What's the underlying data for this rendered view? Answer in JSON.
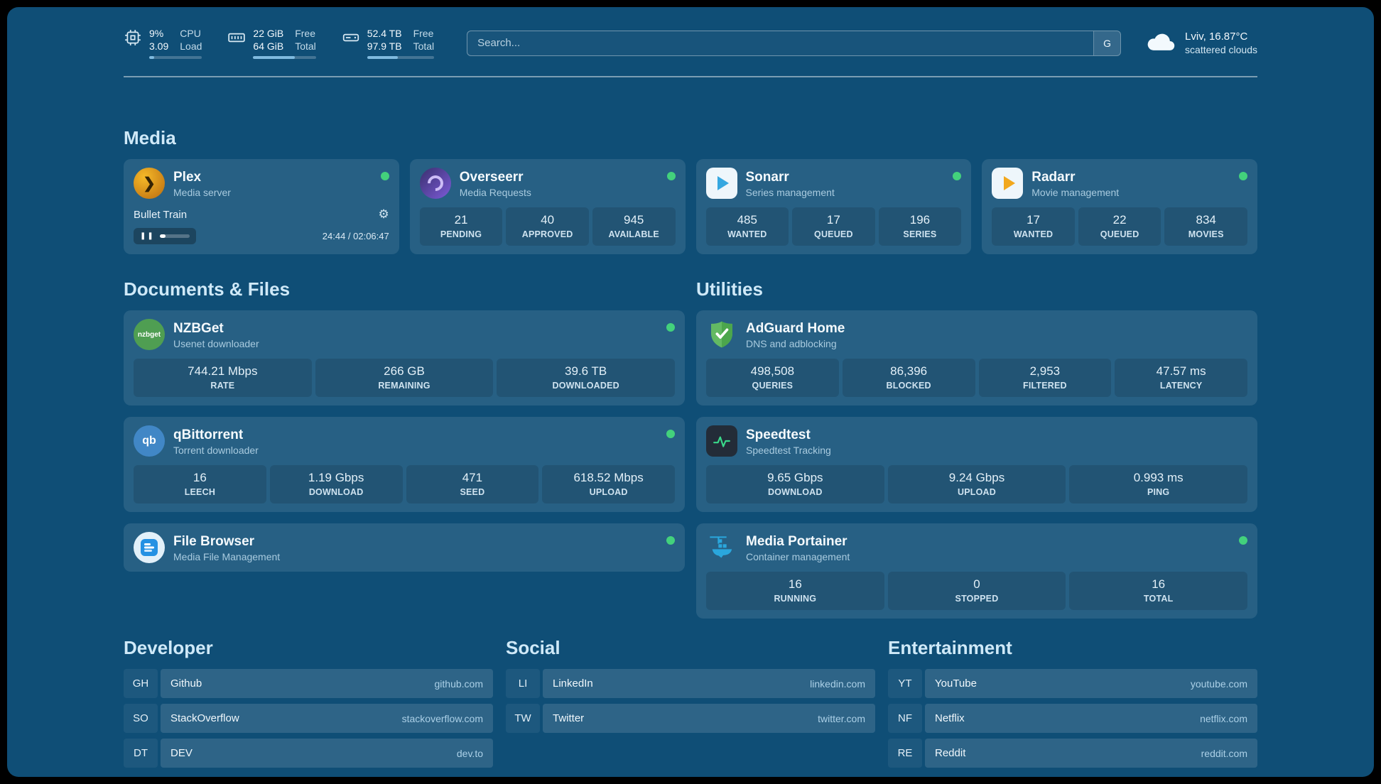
{
  "colors": {
    "status_online": "#43d17c",
    "accent_bar": "#7fbadf",
    "background": "#0f4e76"
  },
  "icons": {
    "gear": "⚙",
    "pause": "❚❚"
  },
  "topbar": {
    "cpu": {
      "value_top": "9%",
      "value_bottom": "3.09",
      "label_top": "CPU",
      "label_bottom": "Load",
      "usage_percent": 9
    },
    "memory": {
      "value_top": "22 GiB",
      "value_bottom": "64 GiB",
      "label_top": "Free",
      "label_bottom": "Total",
      "usage_percent": 66
    },
    "disk": {
      "value_top": "52.4 TB",
      "value_bottom": "97.9 TB",
      "label_top": "Free",
      "label_bottom": "Total",
      "usage_percent": 46
    },
    "search": {
      "placeholder": "Search...",
      "engine_button": "G"
    },
    "weather": {
      "location": "Lviv, 16.87°C",
      "condition": "scattered clouds"
    }
  },
  "sections": {
    "media": {
      "title": "Media",
      "services": [
        {
          "name": "Plex",
          "subtitle": "Media server",
          "status": "online",
          "icon_text": "❯",
          "now_playing": {
            "title": "Bullet Train",
            "time": "24:44 / 02:06:47",
            "progress_percent": 20
          }
        },
        {
          "name": "Overseerr",
          "subtitle": "Media Requests",
          "status": "online",
          "stats": [
            {
              "value": "21",
              "label": "PENDING"
            },
            {
              "value": "40",
              "label": "APPROVED"
            },
            {
              "value": "945",
              "label": "AVAILABLE"
            }
          ]
        },
        {
          "name": "Sonarr",
          "subtitle": "Series management",
          "status": "online",
          "stats": [
            {
              "value": "485",
              "label": "WANTED"
            },
            {
              "value": "17",
              "label": "QUEUED"
            },
            {
              "value": "196",
              "label": "SERIES"
            }
          ]
        },
        {
          "name": "Radarr",
          "subtitle": "Movie management",
          "status": "online",
          "stats": [
            {
              "value": "17",
              "label": "WANTED"
            },
            {
              "value": "22",
              "label": "QUEUED"
            },
            {
              "value": "834",
              "label": "MOVIES"
            }
          ]
        }
      ]
    },
    "documents": {
      "title": "Documents & Files",
      "services": [
        {
          "name": "NZBGet",
          "subtitle": "Usenet downloader",
          "status": "online",
          "icon_text": "nzbget",
          "stats": [
            {
              "value": "744.21 Mbps",
              "label": "RATE"
            },
            {
              "value": "266 GB",
              "label": "REMAINING"
            },
            {
              "value": "39.6 TB",
              "label": "DOWNLOADED"
            }
          ]
        },
        {
          "name": "qBittorrent",
          "subtitle": "Torrent downloader",
          "status": "online",
          "icon_text": "qb",
          "stats": [
            {
              "value": "16",
              "label": "LEECH"
            },
            {
              "value": "1.19 Gbps",
              "label": "DOWNLOAD"
            },
            {
              "value": "471",
              "label": "SEED"
            },
            {
              "value": "618.52 Mbps",
              "label": "UPLOAD"
            }
          ]
        },
        {
          "name": "File Browser",
          "subtitle": "Media File Management",
          "status": "online"
        }
      ]
    },
    "utilities": {
      "title": "Utilities",
      "services": [
        {
          "name": "AdGuard Home",
          "subtitle": "DNS and adblocking",
          "stats": [
            {
              "value": "498,508",
              "label": "QUERIES"
            },
            {
              "value": "86,396",
              "label": "BLOCKED"
            },
            {
              "value": "2,953",
              "label": "FILTERED"
            },
            {
              "value": "47.57 ms",
              "label": "LATENCY"
            }
          ]
        },
        {
          "name": "Speedtest",
          "subtitle": "Speedtest Tracking",
          "stats": [
            {
              "value": "9.65 Gbps",
              "label": "DOWNLOAD"
            },
            {
              "value": "9.24 Gbps",
              "label": "UPLOAD"
            },
            {
              "value": "0.993 ms",
              "label": "PING"
            }
          ]
        },
        {
          "name": "Media Portainer",
          "subtitle": "Container management",
          "status": "online",
          "stats": [
            {
              "value": "16",
              "label": "RUNNING"
            },
            {
              "value": "0",
              "label": "STOPPED"
            },
            {
              "value": "16",
              "label": "TOTAL"
            }
          ]
        }
      ]
    }
  },
  "bookmarks": [
    {
      "title": "Developer",
      "items": [
        {
          "abbr": "GH",
          "name": "Github",
          "url": "github.com"
        },
        {
          "abbr": "SO",
          "name": "StackOverflow",
          "url": "stackoverflow.com"
        },
        {
          "abbr": "DT",
          "name": "DEV",
          "url": "dev.to"
        }
      ]
    },
    {
      "title": "Social",
      "items": [
        {
          "abbr": "LI",
          "name": "LinkedIn",
          "url": "linkedin.com"
        },
        {
          "abbr": "TW",
          "name": "Twitter",
          "url": "twitter.com"
        }
      ]
    },
    {
      "title": "Entertainment",
      "items": [
        {
          "abbr": "YT",
          "name": "YouTube",
          "url": "youtube.com"
        },
        {
          "abbr": "NF",
          "name": "Netflix",
          "url": "netflix.com"
        },
        {
          "abbr": "RE",
          "name": "Reddit",
          "url": "reddit.com"
        }
      ]
    }
  ]
}
